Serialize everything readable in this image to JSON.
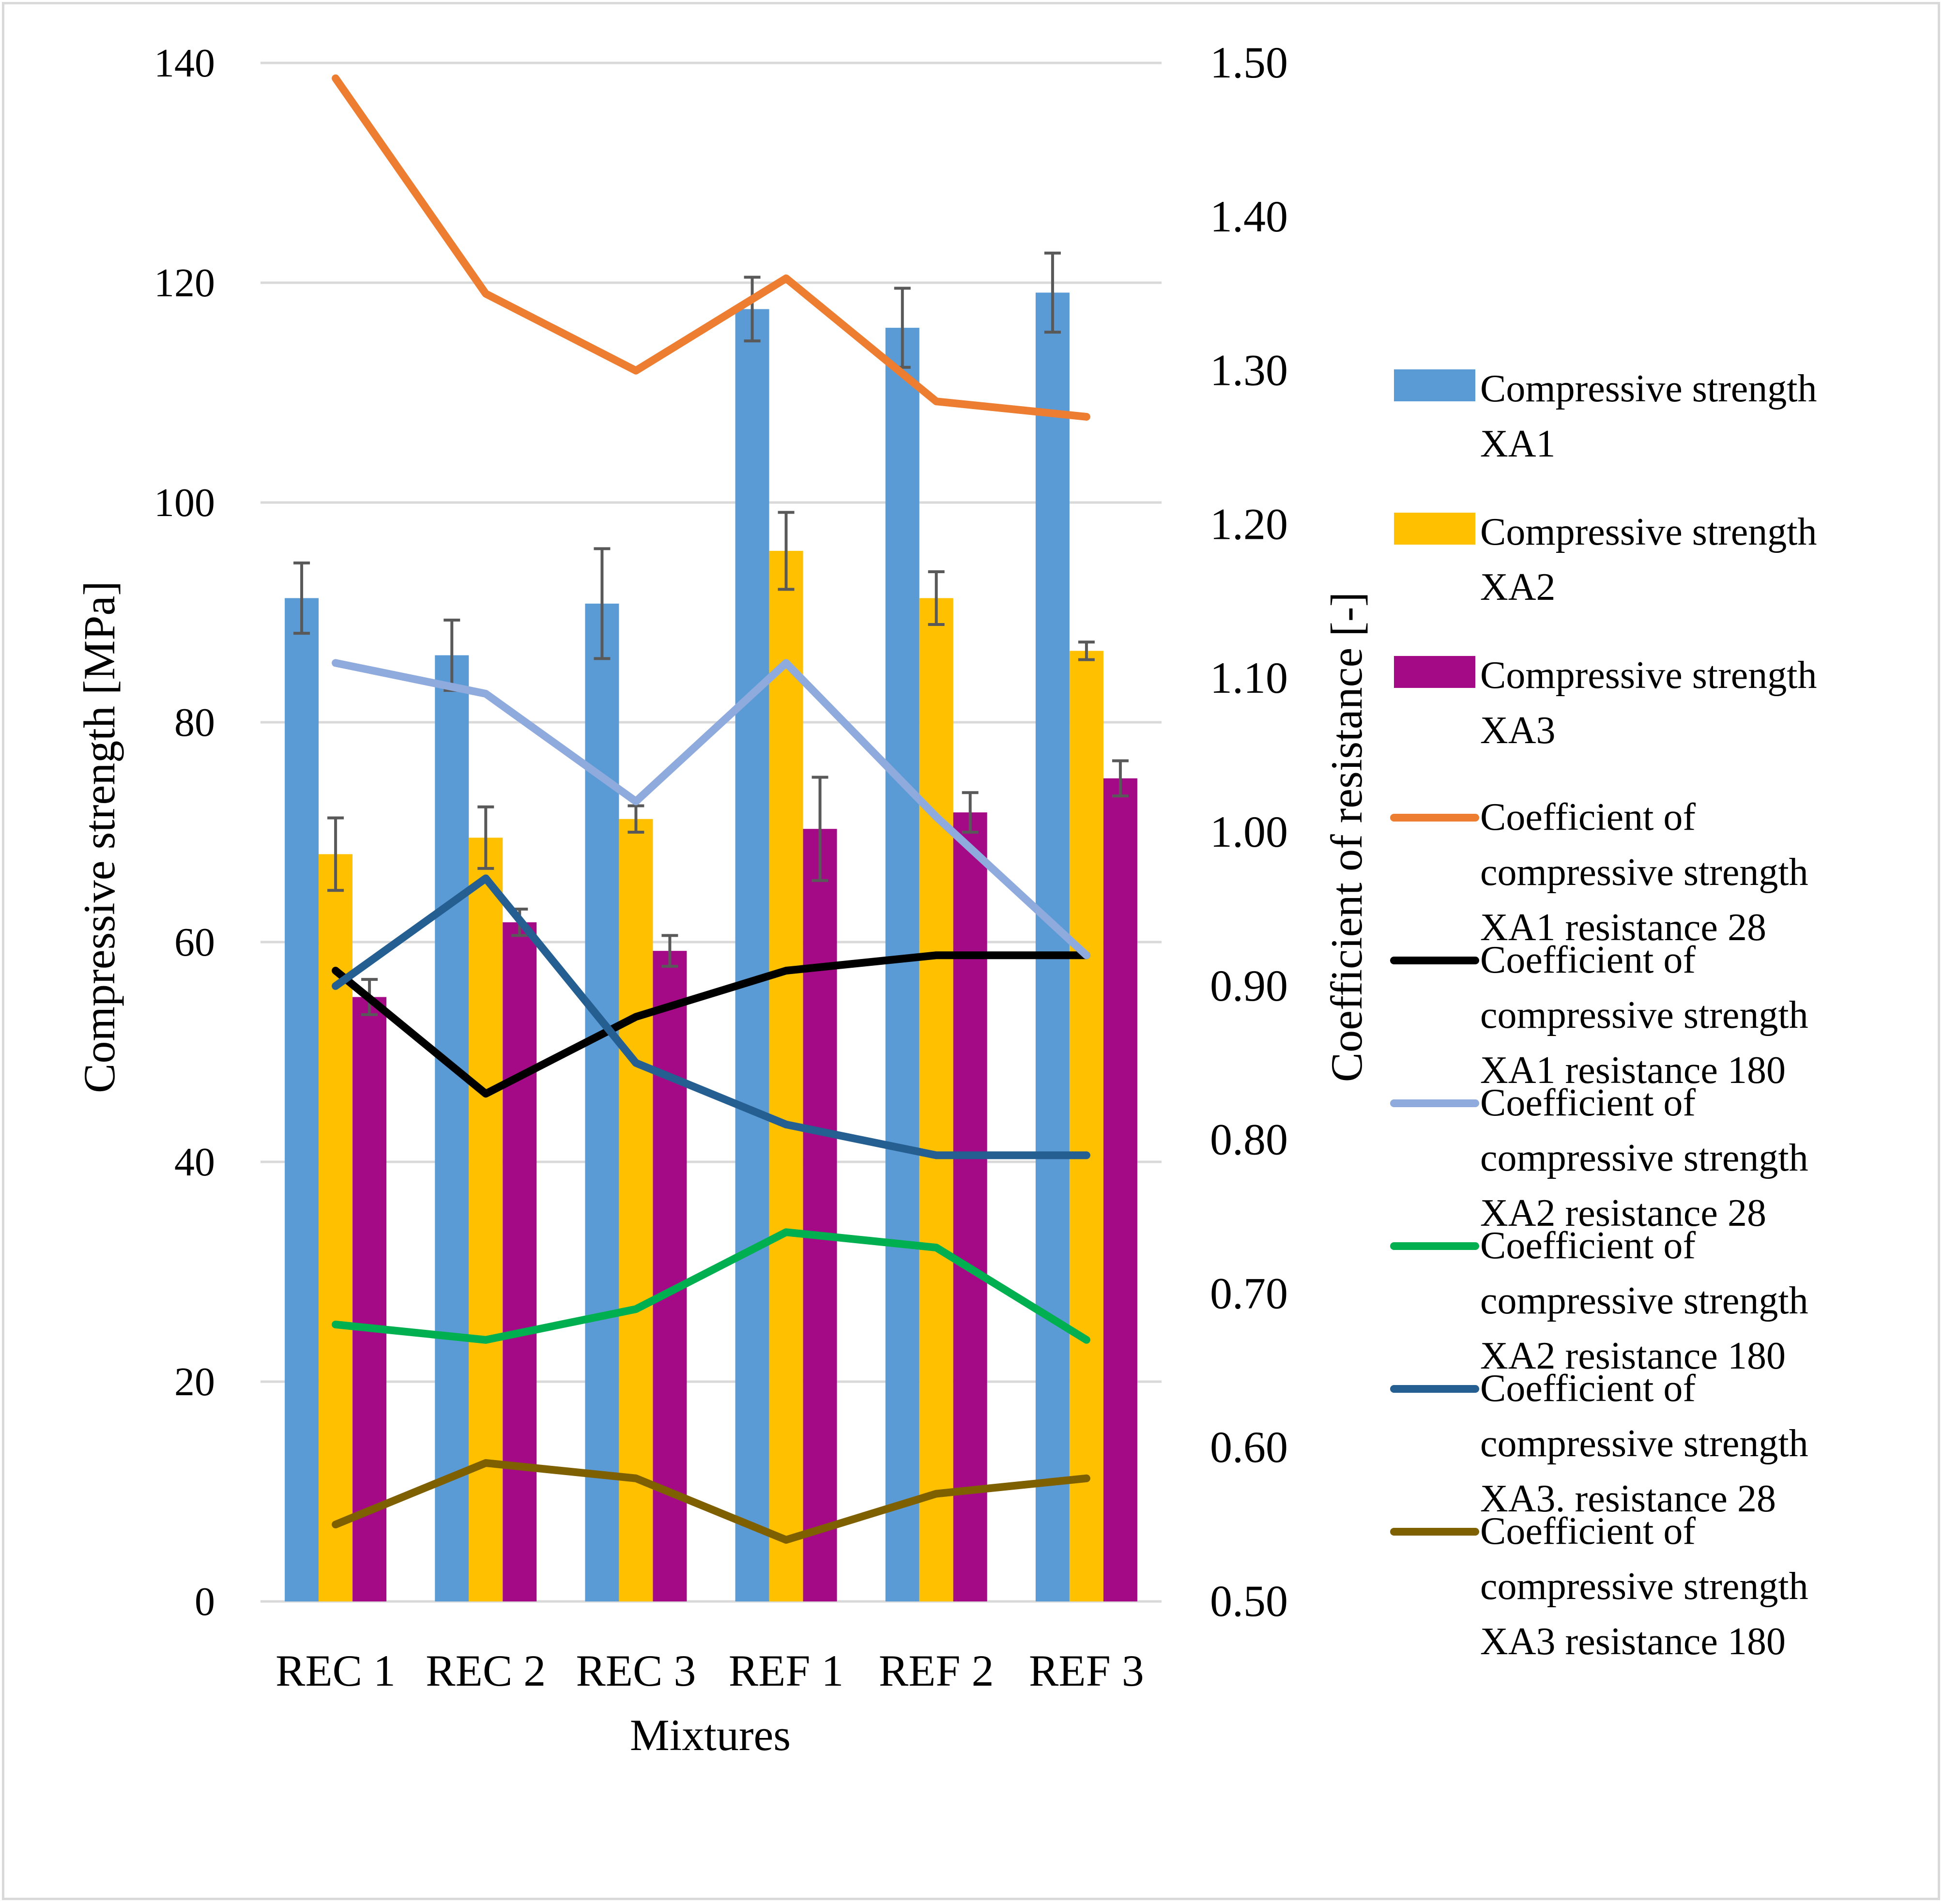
{
  "colors": {
    "grid": "#d9d9d9",
    "error_bar": "#595959",
    "background": "#ffffff"
  },
  "chart_data": {
    "type": "bar",
    "title": "",
    "categories": [
      "REC 1",
      "REC 2",
      "REC 3",
      "REF 1",
      "REF 2",
      "REF 3"
    ],
    "xlabel": "Mixtures",
    "ylabel": "Compressive strength [MPa]",
    "y2label": "Coefficient of resistance  [-]",
    "ylim": [
      0,
      140
    ],
    "y2lim": [
      0.5,
      1.5
    ],
    "yticks": [
      0,
      20,
      40,
      60,
      80,
      100,
      120,
      140
    ],
    "ytick_labels": [
      "0",
      "20",
      "40",
      "60",
      "80",
      "100",
      "120",
      "140"
    ],
    "y2ticks": [
      0.5,
      0.6,
      0.7,
      0.8,
      0.9,
      1.0,
      1.1,
      1.2,
      1.3,
      1.4,
      1.5
    ],
    "y2tick_labels": [
      "0.50",
      "0.60",
      "0.70",
      "0.80",
      "0.90",
      "1.00",
      "1.10",
      "1.20",
      "1.30",
      "1.40",
      "1.50"
    ],
    "grid": true,
    "legend_position": "right",
    "bar_series": [
      {
        "name": "Compressive strength XA1",
        "legend_lines": [
          "Compressive strength",
          "XA1"
        ],
        "color": "#5b9bd5",
        "values": [
          91.3,
          86.1,
          90.8,
          117.6,
          115.9,
          119.1
        ],
        "errors": [
          3.2,
          3.2,
          5.0,
          2.9,
          3.6,
          3.6
        ]
      },
      {
        "name": "Compressive strength XA2",
        "legend_lines": [
          "Compressive strength",
          "XA2"
        ],
        "color": "#ffc000",
        "values": [
          68.0,
          69.5,
          71.2,
          95.6,
          91.3,
          86.5
        ],
        "errors": [
          3.3,
          2.8,
          1.2,
          3.5,
          2.4,
          0.8
        ]
      },
      {
        "name": "Compressive strength XA3",
        "legend_lines": [
          "Compressive strength",
          "XA3"
        ],
        "color": "#a50a86",
        "values": [
          55.0,
          61.8,
          59.2,
          70.3,
          71.8,
          74.9
        ],
        "errors": [
          1.6,
          1.2,
          1.4,
          4.7,
          1.8,
          1.6
        ]
      }
    ],
    "line_series": [
      {
        "name": "Coefficient of compressive strength XA1 resistance 28",
        "legend_lines": [
          "Coefficient of",
          "compressive strength",
          "XA1 resistance 28"
        ],
        "color": "#ed7d31",
        "values": [
          1.49,
          1.35,
          1.3,
          1.36,
          1.28,
          1.27
        ]
      },
      {
        "name": "Coefficient of compressive strength XA1 resistance 180",
        "legend_lines": [
          "Coefficient of",
          "compressive strength",
          "XA1 resistance 180"
        ],
        "color": "#000000",
        "values": [
          0.91,
          0.83,
          0.88,
          0.91,
          0.92,
          0.92
        ]
      },
      {
        "name": "Coefficient of compressive strength XA2 resistance 28",
        "legend_lines": [
          "Coefficient of",
          "compressive strength",
          "XA2 resistance 28"
        ],
        "color": "#8faadc",
        "values": [
          1.11,
          1.09,
          1.02,
          1.11,
          1.01,
          0.92
        ]
      },
      {
        "name": "Coefficient of compressive strength XA2 resistance 180",
        "legend_lines": [
          "Coefficient of",
          "compressive strength",
          "XA2 resistance 180"
        ],
        "color": "#00b050",
        "values": [
          0.68,
          0.67,
          0.69,
          0.74,
          0.73,
          0.67
        ]
      },
      {
        "name": "Coefficient of compressive strength XA3. resistance 28",
        "legend_lines": [
          "Coefficient of",
          "compressive strength",
          "XA3. resistance 28"
        ],
        "color": "#255e91",
        "values": [
          0.9,
          0.97,
          0.85,
          0.81,
          0.79,
          0.79
        ]
      },
      {
        "name": "Coefficient of compressive strength XA3 resistance 180",
        "legend_lines": [
          "Coefficient of",
          "compressive strength",
          "XA3 resistance 180"
        ],
        "color": "#7f6000",
        "values": [
          0.55,
          0.59,
          0.58,
          0.54,
          0.57,
          0.58
        ]
      }
    ]
  }
}
